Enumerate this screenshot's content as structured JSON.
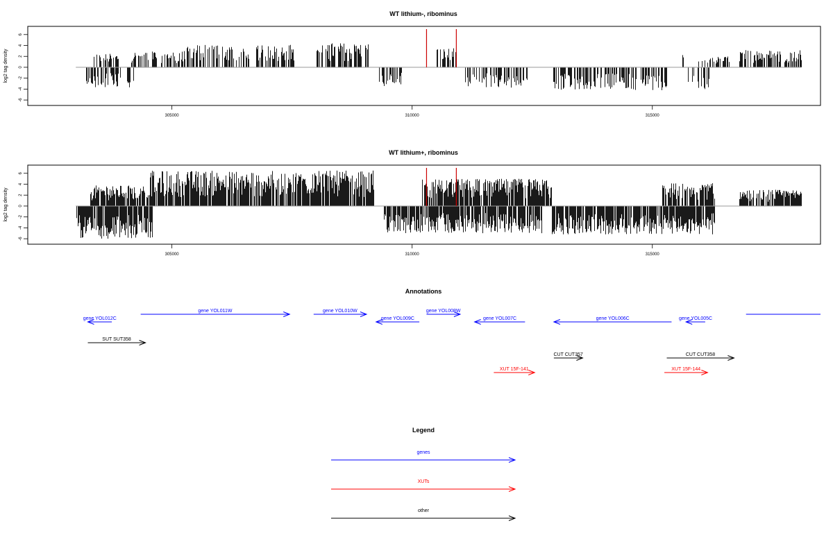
{
  "chart_data": [
    {
      "type": "bar",
      "title": "WT lithium-, ribominus",
      "xlabel": "",
      "ylabel": "log2 tag density",
      "xlim": [
        302000,
        318500
      ],
      "ylim": [
        -7,
        7.5
      ],
      "xticks": [
        305000,
        310000,
        315000
      ],
      "xtick_labels": [
        "305000",
        "310000",
        "315000"
      ],
      "yticks": [
        -6,
        -4,
        -2,
        0,
        2,
        4,
        6
      ],
      "ytick_labels": [
        "-6",
        "-4",
        "-2",
        "0",
        "2",
        "4",
        "6"
      ],
      "marker_lines": [
        310300,
        310920
      ],
      "marker_color": "#cc0000",
      "bar_color": "#000000",
      "baseline_color": "#999999",
      "plus_regions": [
        {
          "start": 303350,
          "end": 303900,
          "max": 2.5
        },
        {
          "start": 304150,
          "end": 305300,
          "max": 3.0
        },
        {
          "start": 305300,
          "end": 307600,
          "max": 4.2
        },
        {
          "start": 308000,
          "end": 309100,
          "max": 4.5
        },
        {
          "start": 310500,
          "end": 310950,
          "max": 3.5
        },
        {
          "start": 315600,
          "end": 315650,
          "max": 2.3
        },
        {
          "start": 315900,
          "end": 316600,
          "max": 2.0
        },
        {
          "start": 316800,
          "end": 318100,
          "max": 3.2
        }
      ],
      "minus_regions": [
        {
          "start": 303200,
          "end": 304200,
          "max": 3.8
        },
        {
          "start": 309300,
          "end": 309800,
          "max": 3.5
        },
        {
          "start": 311100,
          "end": 312400,
          "max": 3.8
        },
        {
          "start": 312900,
          "end": 315300,
          "max": 4.2
        },
        {
          "start": 315700,
          "end": 316200,
          "max": 4.0
        }
      ]
    },
    {
      "type": "bar",
      "title": "WT lithium+, ribominus",
      "xlabel": "",
      "ylabel": "log2 tag density",
      "xlim": [
        302000,
        318500
      ],
      "ylim": [
        -7,
        7.5
      ],
      "xticks": [
        305000,
        310000,
        315000
      ],
      "xtick_labels": [
        "305000",
        "310000",
        "315000"
      ],
      "yticks": [
        -6,
        -4,
        -2,
        0,
        2,
        4,
        6
      ],
      "ytick_labels": [
        "-6",
        "-4",
        "-2",
        "0",
        "2",
        "4",
        "6"
      ],
      "marker_lines": [
        310300,
        310920
      ],
      "marker_color": "#cc0000",
      "bar_color": "#000000",
      "baseline_color": "#999999",
      "plus_regions": [
        {
          "start": 303300,
          "end": 304500,
          "max": 3.8
        },
        {
          "start": 304500,
          "end": 309200,
          "max": 6.5
        },
        {
          "start": 310200,
          "end": 312900,
          "max": 5.0
        },
        {
          "start": 315200,
          "end": 316300,
          "max": 4.2
        },
        {
          "start": 316800,
          "end": 318100,
          "max": 3.0
        }
      ],
      "minus_regions": [
        {
          "start": 303000,
          "end": 304600,
          "max": 6.0
        },
        {
          "start": 309400,
          "end": 312700,
          "max": 5.0
        },
        {
          "start": 312900,
          "end": 316300,
          "max": 5.2
        }
      ]
    }
  ],
  "annotations": {
    "title": "Annotations",
    "colors": {
      "gene": "#0000ff",
      "xut": "#ff0000",
      "other": "#000000"
    },
    "features": [
      {
        "label": "gene YOL012C",
        "kind": "gene",
        "strand": "-",
        "start": 303250,
        "end": 303750,
        "row": 1
      },
      {
        "label": "gene YOL011W",
        "kind": "gene",
        "strand": "+",
        "start": 304350,
        "end": 307450,
        "row": 0
      },
      {
        "label": "gene YOL010W",
        "kind": "gene",
        "strand": "+",
        "start": 307950,
        "end": 309050,
        "row": 0
      },
      {
        "label": "gene YOL009C",
        "kind": "gene",
        "strand": "-",
        "start": 309250,
        "end": 310150,
        "row": 1
      },
      {
        "label": "gene YOL008W",
        "kind": "gene",
        "strand": "+",
        "start": 310300,
        "end": 311000,
        "row": 0
      },
      {
        "label": "gene YOL007C",
        "kind": "gene",
        "strand": "-",
        "start": 311300,
        "end": 312350,
        "row": 1
      },
      {
        "label": "gene YOL006C",
        "kind": "gene",
        "strand": "-",
        "start": 312950,
        "end": 315400,
        "row": 1
      },
      {
        "label": "gene YOL005C",
        "kind": "gene",
        "strand": "-",
        "start": 315700,
        "end": 316100,
        "row": 1
      },
      {
        "label": "",
        "kind": "gene",
        "strand": "none",
        "start": 316950,
        "end": 318500,
        "row": 0
      },
      {
        "label": "SUT SUT358",
        "kind": "other",
        "strand": "+",
        "start": 303250,
        "end": 304450,
        "row": 2
      },
      {
        "label": "CUT CUT357",
        "kind": "other",
        "strand": "+",
        "start": 312950,
        "end": 313550,
        "row": 3
      },
      {
        "label": "CUT CUT358",
        "kind": "other",
        "strand": "+",
        "start": 315300,
        "end": 316700,
        "row": 3
      },
      {
        "label": "XUT 15F-141",
        "kind": "xut",
        "strand": "+",
        "start": 311700,
        "end": 312550,
        "row": 4
      },
      {
        "label": "XUT 15F-144",
        "kind": "xut",
        "strand": "+",
        "start": 315250,
        "end": 316150,
        "row": 4
      }
    ]
  },
  "legend": {
    "title": "Legend",
    "items": [
      {
        "label": "genes",
        "color": "#0000ff"
      },
      {
        "label": "XUTs",
        "color": "#ff0000"
      },
      {
        "label": "other",
        "color": "#000000"
      }
    ]
  }
}
